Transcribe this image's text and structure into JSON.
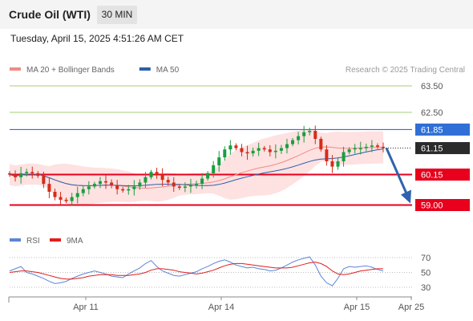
{
  "header": {
    "instrument": "Crude Oil (WTI)",
    "timeframe": "30 MIN",
    "datetime": "Tuesday, April 15, 2025 4:51:26 AM CET"
  },
  "colors": {
    "resistance": "#2f6fd6",
    "support": "#e8001c",
    "target_line": "#a6cf78",
    "ma20": "#f08a86",
    "ma50": "#2c5fa8",
    "band_fill": "#fdd7d7",
    "candle_up": "#1a9e3f",
    "candle_down": "#d42c1a",
    "arrow": "#2f63ad",
    "rsi": "#5b86d6",
    "rsi_ma": "#e21d1d",
    "current_price": "#2b2b2b"
  },
  "chart_data": [
    {
      "type": "candlestick",
      "title": "Crude Oil (WTI)",
      "legend": [
        {
          "name": "MA 20 + Bollinger Bands",
          "color": "#f08a86"
        },
        {
          "name": "MA 50",
          "color": "#2c5fa8"
        }
      ],
      "watermark": "Research © 2025 Trading Central",
      "ylim": [
        58.6,
        64.1
      ],
      "y_ticks": [
        59.0,
        60.15,
        61.15,
        61.85,
        62.5,
        63.5
      ],
      "x_ticks": [
        "Apr 11",
        "Apr 14",
        "Apr 15",
        "Apr 25"
      ],
      "levels": [
        {
          "label": "63.50",
          "value": 63.5,
          "kind": "target"
        },
        {
          "label": "62.50",
          "value": 62.5,
          "kind": "target"
        },
        {
          "label": "61.85",
          "value": 61.85,
          "kind": "resistance"
        },
        {
          "label": "61.15",
          "value": 61.15,
          "kind": "current"
        },
        {
          "label": "60.15",
          "value": 60.15,
          "kind": "support"
        },
        {
          "label": "59.00",
          "value": 59.0,
          "kind": "support"
        }
      ],
      "close_series": [
        60.15,
        60.05,
        60.2,
        60.25,
        60.2,
        60.1,
        59.8,
        59.5,
        59.3,
        59.2,
        59.15,
        59.3,
        59.45,
        59.6,
        59.7,
        59.8,
        59.9,
        59.85,
        59.75,
        59.6,
        59.55,
        59.6,
        59.7,
        59.85,
        60.05,
        60.25,
        60.15,
        59.95,
        59.85,
        59.7,
        59.65,
        59.7,
        59.75,
        59.8,
        60.0,
        60.2,
        60.5,
        60.8,
        61.1,
        61.25,
        61.15,
        61.0,
        60.95,
        61.05,
        61.15,
        61.1,
        61.0,
        61.05,
        61.15,
        61.3,
        61.45,
        61.6,
        61.75,
        61.8,
        61.5,
        61.1,
        60.65,
        60.45,
        60.65,
        61.0,
        61.1,
        61.15,
        61.15,
        61.2,
        61.25,
        61.2,
        61.15
      ],
      "projection": {
        "from": 61.15,
        "to": 59.0
      }
    },
    {
      "type": "line",
      "title": "RSI",
      "legend": [
        {
          "name": "RSI",
          "color": "#5b86d6"
        },
        {
          "name": "9MA",
          "color": "#e21d1d"
        }
      ],
      "ylim": [
        20,
        80
      ],
      "y_ticks": [
        30,
        50,
        70
      ],
      "series": [
        {
          "name": "RSI",
          "values": [
            52,
            55,
            58,
            50,
            48,
            45,
            42,
            38,
            35,
            36,
            38,
            42,
            45,
            48,
            50,
            52,
            50,
            48,
            45,
            44,
            43,
            48,
            52,
            56,
            62,
            66,
            58,
            52,
            49,
            46,
            45,
            47,
            49,
            51,
            55,
            58,
            62,
            65,
            67,
            64,
            60,
            58,
            56,
            57,
            55,
            54,
            52,
            53,
            56,
            60,
            64,
            67,
            69,
            71,
            60,
            45,
            36,
            32,
            42,
            55,
            58,
            57,
            58,
            59,
            57,
            54,
            52
          ]
        },
        {
          "name": "9MA",
          "values": [
            50,
            51,
            52,
            52,
            51,
            50,
            48,
            46,
            44,
            42,
            41,
            41,
            42,
            43,
            45,
            46,
            47,
            47,
            47,
            46,
            46,
            46,
            47,
            48,
            50,
            53,
            55,
            55,
            54,
            53,
            51,
            50,
            49,
            48,
            49,
            51,
            53,
            56,
            59,
            61,
            62,
            62,
            61,
            60,
            59,
            58,
            57,
            56,
            56,
            56,
            57,
            59,
            61,
            63,
            64,
            62,
            58,
            52,
            48,
            47,
            48,
            50,
            52,
            53,
            54,
            55,
            55
          ]
        }
      ]
    }
  ]
}
